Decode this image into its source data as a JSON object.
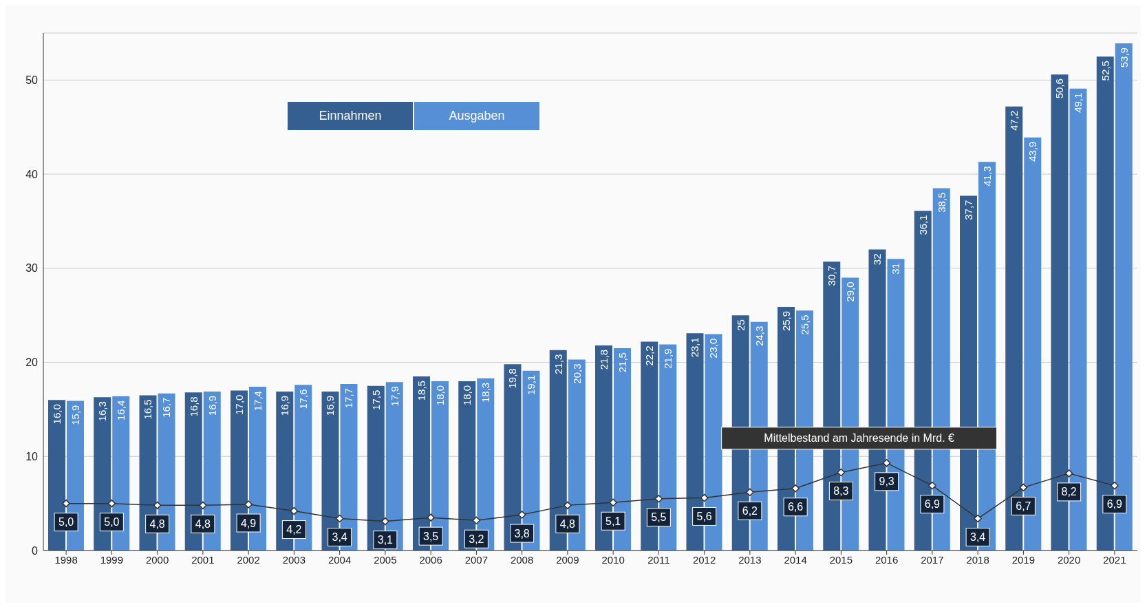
{
  "chart_data": {
    "type": "bar",
    "categories": [
      "1998",
      "1999",
      "2000",
      "2001",
      "2002",
      "2003",
      "2004",
      "2005",
      "2006",
      "2007",
      "2008",
      "2009",
      "2010",
      "2011",
      "2012",
      "2013",
      "2014",
      "2015",
      "2016",
      "2017",
      "2018",
      "2019",
      "2020",
      "2021"
    ],
    "series": [
      {
        "name": "Einnahmen",
        "color": "#365f91",
        "values": [
          16.0,
          16.3,
          16.5,
          16.8,
          17.0,
          16.9,
          16.9,
          17.5,
          18.5,
          18.0,
          19.8,
          21.3,
          21.8,
          22.2,
          23.1,
          25,
          25.9,
          30.7,
          32,
          36.1,
          37.7,
          47.2,
          50.6,
          52.5
        ],
        "value_labels": [
          "16,0",
          "16,3",
          "16,5",
          "16,8",
          "17,0",
          "16,9",
          "16,9",
          "17,5",
          "18,5",
          "18,0",
          "19,8",
          "21,3",
          "21,8",
          "22,2",
          "23,1",
          "25",
          "25,9",
          "30,7",
          "32",
          "36,1",
          "37,7",
          "47,2",
          "50,6",
          "52,5"
        ]
      },
      {
        "name": "Ausgaben",
        "color": "#558fd6",
        "values": [
          15.9,
          16.4,
          16.7,
          16.9,
          17.4,
          17.6,
          17.7,
          17.9,
          18.0,
          18.3,
          19.1,
          20.3,
          21.5,
          21.9,
          23.0,
          24.3,
          25.5,
          29.0,
          31,
          38.5,
          41.3,
          43.9,
          49.1,
          53.9
        ],
        "value_labels": [
          "15,9",
          "16,4",
          "16,7",
          "16,9",
          "17,4",
          "17,6",
          "17,7",
          "17,9",
          "18,0",
          "18,3",
          "19,1",
          "20,3",
          "21,5",
          "21,9",
          "23,0",
          "24,3",
          "25,5",
          "29,0",
          "31",
          "38,5",
          "41,3",
          "43,9",
          "49,1",
          "53,9"
        ]
      },
      {
        "name": "Mittelbestand am Jahresende in Mrd. €",
        "type": "line",
        "color": "#333333",
        "values": [
          5.0,
          5.0,
          4.8,
          4.8,
          4.9,
          4.2,
          3.4,
          3.1,
          3.5,
          3.2,
          3.8,
          4.8,
          5.1,
          5.5,
          5.6,
          6.2,
          6.6,
          8.3,
          9.3,
          6.9,
          3.4,
          6.7,
          8.2,
          6.9
        ],
        "value_labels": [
          "5,0",
          "5,0",
          "4,8",
          "4,8",
          "4,9",
          "4,2",
          "3,4",
          "3,1",
          "3,5",
          "3,2",
          "3,8",
          "4,8",
          "5,1",
          "5,5",
          "5,6",
          "6,2",
          "6,6",
          "8,3",
          "9,3",
          "6,9",
          "3,4",
          "6,7",
          "8,2",
          "6,9"
        ]
      }
    ],
    "ylim": [
      0,
      55
    ],
    "yticks": [
      0,
      10,
      20,
      30,
      40,
      50
    ],
    "grid": "y",
    "legend": "top left",
    "marker": "diamond"
  }
}
